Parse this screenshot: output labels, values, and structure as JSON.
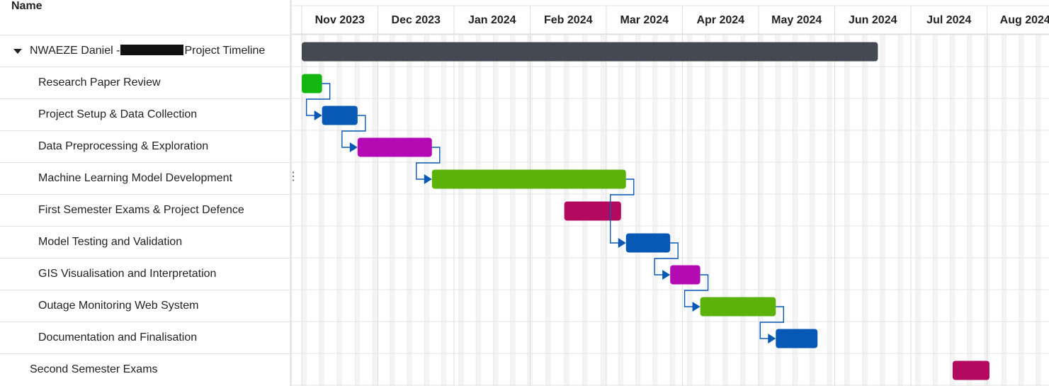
{
  "list": {
    "header": "Name",
    "rows": [
      {
        "label_prefix": "NWAEZE Daniel -",
        "label_suffix": "Project Timeline",
        "redacted": true,
        "indent": 1,
        "expandable": true
      },
      {
        "label": "Research Paper Review",
        "indent": 2
      },
      {
        "label": "Project Setup & Data Collection",
        "indent": 2
      },
      {
        "label": "Data Preprocessing & Exploration",
        "indent": 2
      },
      {
        "label": "Machine Learning Model Development",
        "indent": 2
      },
      {
        "label": "First Semester Exams & Project Defence",
        "indent": 2
      },
      {
        "label": "Model Testing and Validation",
        "indent": 2
      },
      {
        "label": "GIS Visualisation and Interpretation",
        "indent": 2
      },
      {
        "label": "Outage Monitoring Web System",
        "indent": 2
      },
      {
        "label": "Documentation and Finalisation",
        "indent": 2
      },
      {
        "label": "Second Semester Exams",
        "indent": 1
      }
    ]
  },
  "timeline": {
    "months": [
      "Nov 2023",
      "Dec 2023",
      "Jan 2024",
      "Feb 2024",
      "Mar 2024",
      "Apr 2024",
      "May 2024",
      "Jun 2024",
      "Jul 2024",
      "Aug 2024"
    ],
    "colors": {
      "summary": "#454a52",
      "green": "#5bb30a",
      "bright_green": "#13b70f",
      "blue": "#0859b5",
      "purple": "#b30ab3",
      "crimson": "#b3095e",
      "link": "#0859b5"
    },
    "tasks": [
      {
        "name": "NWAEZE Daniel - Project Timeline",
        "start": "2023-11-01",
        "end": "2024-06-18",
        "color": "summary",
        "summary": true
      },
      {
        "name": "Research Paper Review",
        "start": "2023-11-01",
        "end": "2023-11-09",
        "color": "bright_green"
      },
      {
        "name": "Project Setup & Data Collection",
        "start": "2023-11-09",
        "end": "2023-11-23",
        "color": "blue"
      },
      {
        "name": "Data Preprocessing & Exploration",
        "start": "2023-11-23",
        "end": "2023-12-23",
        "color": "purple"
      },
      {
        "name": "Machine Learning Model Development",
        "start": "2023-12-23",
        "end": "2024-03-09",
        "color": "green"
      },
      {
        "name": "First Semester Exams & Project Defence",
        "start": "2024-02-14",
        "end": "2024-03-07",
        "color": "crimson"
      },
      {
        "name": "Model Testing and Validation",
        "start": "2024-03-09",
        "end": "2024-03-27",
        "color": "blue"
      },
      {
        "name": "GIS Visualisation and Interpretation",
        "start": "2024-03-27",
        "end": "2024-04-08",
        "color": "purple"
      },
      {
        "name": "Outage Monitoring Web System",
        "start": "2024-04-08",
        "end": "2024-05-08",
        "color": "green"
      },
      {
        "name": "Documentation and Finalisation",
        "start": "2024-05-08",
        "end": "2024-05-25",
        "color": "blue"
      },
      {
        "name": "Second Semester Exams",
        "start": "2024-07-18",
        "end": "2024-08-02",
        "color": "crimson"
      }
    ],
    "dependencies": [
      [
        1,
        2
      ],
      [
        2,
        3
      ],
      [
        3,
        4
      ],
      [
        4,
        6
      ],
      [
        6,
        7
      ],
      [
        7,
        8
      ],
      [
        8,
        9
      ]
    ]
  }
}
